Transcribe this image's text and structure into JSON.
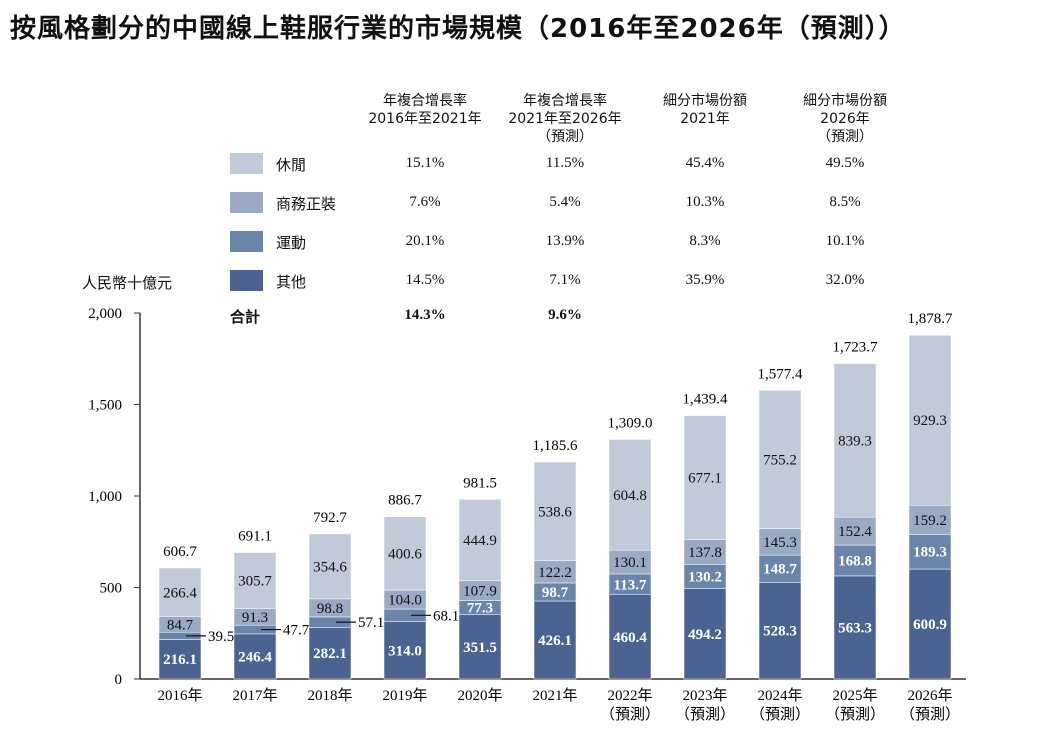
{
  "title": "按風格劃分的中國線上鞋服行業的市場規模（2016年至2026年（預測））",
  "unit_label": "人民幣十億元",
  "table": {
    "headers": [
      [
        "年複合增長率",
        "2016年至2021年"
      ],
      [
        "年複合增長率",
        "2021年至2026年",
        "（預測）"
      ],
      [
        "細分市場份額",
        "2021年"
      ],
      [
        "細分市場份額",
        "2026年",
        "（預測）"
      ]
    ],
    "rows": [
      {
        "name": "休閒",
        "values": [
          "15.1%",
          "11.5%",
          "45.4%",
          "49.5%"
        ]
      },
      {
        "name": "商務正裝",
        "values": [
          "7.6%",
          "5.4%",
          "10.3%",
          "8.5%"
        ]
      },
      {
        "name": "運動",
        "values": [
          "20.1%",
          "13.9%",
          "8.3%",
          "10.1%"
        ]
      },
      {
        "name": "其他",
        "values": [
          "14.5%",
          "7.1%",
          "35.9%",
          "32.0%"
        ]
      }
    ],
    "total": {
      "name": "合計",
      "values": [
        "14.3%",
        "9.6%"
      ]
    }
  },
  "chart_data": {
    "type": "bar",
    "stacked": true,
    "ylim": [
      0,
      2000
    ],
    "yticks": [
      "0",
      "500",
      "1,000",
      "1,500",
      "2,000"
    ],
    "categories": [
      "2016年",
      "2017年",
      "2018年",
      "2019年",
      "2020年",
      "2021年",
      "2022年\n（預測）",
      "2023年\n（預測）",
      "2024年\n（預測）",
      "2025年\n（預測）",
      "2026年\n（預測）"
    ],
    "series": [
      {
        "name": "其他",
        "color": "#4a6390",
        "values": [
          216.1,
          246.4,
          282.1,
          314.0,
          351.5,
          426.1,
          460.4,
          494.2,
          528.3,
          563.3,
          600.9
        ]
      },
      {
        "name": "運動",
        "color": "#6a85aa",
        "values": [
          39.5,
          47.7,
          57.1,
          68.1,
          77.3,
          98.7,
          113.7,
          130.2,
          148.7,
          168.8,
          189.3
        ]
      },
      {
        "name": "商務正裝",
        "color": "#9aaac4",
        "values": [
          84.7,
          91.3,
          98.8,
          104.0,
          107.9,
          122.2,
          130.1,
          137.8,
          145.3,
          152.4,
          159.2
        ]
      },
      {
        "name": "休閒",
        "color": "#c0cad8",
        "values": [
          266.4,
          305.7,
          354.6,
          400.6,
          444.9,
          538.6,
          604.8,
          677.1,
          755.2,
          839.3,
          929.3
        ]
      }
    ],
    "totals": [
      "606.7",
      "691.1",
      "792.7",
      "886.7",
      "981.5",
      "1,185.6",
      "1,309.0",
      "1,439.4",
      "1,577.4",
      "1,723.7",
      "1,878.7"
    ]
  }
}
